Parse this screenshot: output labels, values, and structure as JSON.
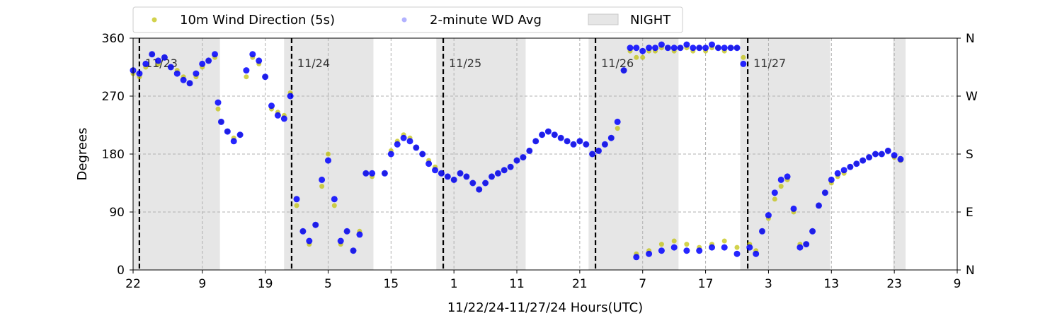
{
  "chart_data": {
    "type": "scatter",
    "title": "",
    "xlabel": "11/22/24-11/27/24  Hours(UTC)",
    "ylabel": "Degrees",
    "x_range_hours": [
      0,
      131
    ],
    "x_tick_hours": [
      0,
      11,
      21,
      31,
      41,
      51,
      61,
      71,
      81,
      91,
      101,
      111,
      121,
      131
    ],
    "x_tick_labels": [
      "22",
      "9",
      "19",
      "5",
      "15",
      "1",
      "11",
      "21",
      "7",
      "17",
      "3",
      "13",
      "23",
      "9"
    ],
    "ylim": [
      0,
      360
    ],
    "y_ticks": [
      0,
      90,
      180,
      270,
      360
    ],
    "y_tick_labels": [
      "0",
      "90",
      "180",
      "270",
      "360"
    ],
    "right_axis_ticks": [
      0,
      90,
      180,
      270,
      360
    ],
    "right_axis_labels": [
      "N",
      "E",
      "S",
      "W",
      "N"
    ],
    "grid": true,
    "legend": {
      "placement": "top-left-outside",
      "entries": [
        {
          "label": "10m Wind Direction (5s)",
          "color": "#bfbf00",
          "marker": "circle"
        },
        {
          "label": "2-minute WD Avg",
          "color": "#0000ff",
          "marker": "circle"
        },
        {
          "label": "NIGHT",
          "color": "#e6e6e6",
          "marker": "patch"
        }
      ]
    },
    "night_periods_hours": [
      [
        0,
        13.8
      ],
      [
        24,
        38.2
      ],
      [
        48.2,
        62.4
      ],
      [
        72.4,
        86.7
      ],
      [
        96.5,
        110.8
      ],
      [
        120.8,
        122.8
      ]
    ],
    "day_boundaries": [
      {
        "hour": 1,
        "label": "11/23"
      },
      {
        "hour": 25.2,
        "label": "11/24"
      },
      {
        "hour": 49.3,
        "label": "11/25"
      },
      {
        "hour": 73.5,
        "label": "11/26"
      },
      {
        "hour": 97.7,
        "label": "11/27"
      }
    ],
    "series": [
      {
        "name": "10m Wind Direction (5s)",
        "color": "#bfbf00",
        "points": [
          [
            0,
            305
          ],
          [
            1,
            300
          ],
          [
            2,
            315
          ],
          [
            3,
            335
          ],
          [
            4,
            320
          ],
          [
            5,
            330
          ],
          [
            6,
            315
          ],
          [
            7,
            310
          ],
          [
            8,
            300
          ],
          [
            9,
            290
          ],
          [
            10,
            300
          ],
          [
            11,
            315
          ],
          [
            12,
            325
          ],
          [
            13,
            330
          ],
          [
            13.5,
            250
          ],
          [
            14,
            230
          ],
          [
            15,
            215
          ],
          [
            16,
            205
          ],
          [
            17,
            210
          ],
          [
            18,
            300
          ],
          [
            19,
            330
          ],
          [
            20,
            320
          ],
          [
            21,
            300
          ],
          [
            22,
            250
          ],
          [
            23,
            245
          ],
          [
            24,
            240
          ],
          [
            25,
            275
          ],
          [
            26,
            100
          ],
          [
            27,
            60
          ],
          [
            28,
            40
          ],
          [
            29,
            70
          ],
          [
            30,
            130
          ],
          [
            31,
            180
          ],
          [
            32,
            100
          ],
          [
            33,
            40
          ],
          [
            34,
            60
          ],
          [
            35,
            30
          ],
          [
            36,
            60
          ],
          [
            37,
            150
          ],
          [
            38,
            145
          ],
          [
            40,
            150
          ],
          [
            41,
            185
          ],
          [
            42,
            200
          ],
          [
            43,
            210
          ],
          [
            44,
            205
          ],
          [
            45,
            190
          ],
          [
            46,
            180
          ],
          [
            47,
            170
          ],
          [
            48,
            160
          ],
          [
            49,
            150
          ],
          [
            50,
            145
          ],
          [
            51,
            140
          ],
          [
            52,
            150
          ],
          [
            53,
            145
          ],
          [
            54,
            135
          ],
          [
            55,
            125
          ],
          [
            56,
            135
          ],
          [
            57,
            145
          ],
          [
            58,
            150
          ],
          [
            59,
            155
          ],
          [
            60,
            160
          ],
          [
            61,
            170
          ],
          [
            62,
            175
          ],
          [
            63,
            185
          ],
          [
            64,
            200
          ],
          [
            65,
            210
          ],
          [
            66,
            215
          ],
          [
            67,
            210
          ],
          [
            68,
            205
          ],
          [
            69,
            200
          ],
          [
            70,
            195
          ],
          [
            71,
            200
          ],
          [
            72,
            195
          ],
          [
            73,
            180
          ],
          [
            74,
            185
          ],
          [
            75,
            195
          ],
          [
            76,
            205
          ],
          [
            77,
            220
          ],
          [
            78,
            310
          ],
          [
            79,
            340
          ],
          [
            80,
            330
          ],
          [
            81,
            330
          ],
          [
            82,
            340
          ],
          [
            83,
            340
          ],
          [
            84,
            345
          ],
          [
            85,
            345
          ],
          [
            86,
            340
          ],
          [
            87,
            345
          ],
          [
            88,
            345
          ],
          [
            89,
            340
          ],
          [
            90,
            345
          ],
          [
            91,
            340
          ],
          [
            92,
            345
          ],
          [
            93,
            345
          ],
          [
            94,
            340
          ],
          [
            95,
            345
          ],
          [
            96,
            345
          ],
          [
            80,
            25
          ],
          [
            82,
            30
          ],
          [
            84,
            40
          ],
          [
            86,
            45
          ],
          [
            88,
            40
          ],
          [
            90,
            35
          ],
          [
            92,
            40
          ],
          [
            94,
            45
          ],
          [
            96,
            35
          ],
          [
            97,
            330
          ],
          [
            98,
            40
          ],
          [
            99,
            30
          ],
          [
            100,
            60
          ],
          [
            101,
            80
          ],
          [
            102,
            110
          ],
          [
            103,
            130
          ],
          [
            104,
            140
          ],
          [
            105,
            90
          ],
          [
            106,
            40
          ],
          [
            107,
            40
          ],
          [
            108,
            60
          ],
          [
            109,
            100
          ],
          [
            110,
            120
          ],
          [
            111,
            135
          ],
          [
            112,
            145
          ],
          [
            113,
            150
          ],
          [
            114,
            160
          ],
          [
            115,
            165
          ],
          [
            116,
            170
          ],
          [
            117,
            175
          ],
          [
            118,
            180
          ],
          [
            119,
            180
          ],
          [
            120,
            185
          ],
          [
            121,
            175
          ],
          [
            122,
            170
          ]
        ]
      },
      {
        "name": "2-minute WD Avg",
        "color": "#0000ff",
        "points": [
          [
            0,
            310
          ],
          [
            1,
            305
          ],
          [
            2,
            320
          ],
          [
            3,
            335
          ],
          [
            4,
            325
          ],
          [
            5,
            330
          ],
          [
            6,
            315
          ],
          [
            7,
            305
          ],
          [
            8,
            295
          ],
          [
            9,
            290
          ],
          [
            10,
            305
          ],
          [
            11,
            320
          ],
          [
            12,
            325
          ],
          [
            13,
            335
          ],
          [
            13.5,
            260
          ],
          [
            14,
            230
          ],
          [
            15,
            215
          ],
          [
            16,
            200
          ],
          [
            17,
            210
          ],
          [
            18,
            310
          ],
          [
            19,
            335
          ],
          [
            20,
            325
          ],
          [
            21,
            300
          ],
          [
            22,
            255
          ],
          [
            23,
            240
          ],
          [
            24,
            235
          ],
          [
            25,
            270
          ],
          [
            26,
            110
          ],
          [
            27,
            60
          ],
          [
            28,
            45
          ],
          [
            29,
            70
          ],
          [
            30,
            140
          ],
          [
            31,
            170
          ],
          [
            32,
            110
          ],
          [
            33,
            45
          ],
          [
            34,
            60
          ],
          [
            35,
            30
          ],
          [
            36,
            55
          ],
          [
            37,
            150
          ],
          [
            38,
            150
          ],
          [
            40,
            150
          ],
          [
            41,
            180
          ],
          [
            42,
            195
          ],
          [
            43,
            205
          ],
          [
            44,
            200
          ],
          [
            45,
            190
          ],
          [
            46,
            180
          ],
          [
            47,
            165
          ],
          [
            48,
            155
          ],
          [
            49,
            150
          ],
          [
            50,
            145
          ],
          [
            51,
            140
          ],
          [
            52,
            150
          ],
          [
            53,
            145
          ],
          [
            54,
            135
          ],
          [
            55,
            125
          ],
          [
            56,
            135
          ],
          [
            57,
            145
          ],
          [
            58,
            150
          ],
          [
            59,
            155
          ],
          [
            60,
            160
          ],
          [
            61,
            170
          ],
          [
            62,
            175
          ],
          [
            63,
            185
          ],
          [
            64,
            200
          ],
          [
            65,
            210
          ],
          [
            66,
            215
          ],
          [
            67,
            210
          ],
          [
            68,
            205
          ],
          [
            69,
            200
          ],
          [
            70,
            195
          ],
          [
            71,
            200
          ],
          [
            72,
            195
          ],
          [
            73,
            180
          ],
          [
            74,
            185
          ],
          [
            75,
            195
          ],
          [
            76,
            205
          ],
          [
            77,
            230
          ],
          [
            78,
            310
          ],
          [
            79,
            345
          ],
          [
            80,
            345
          ],
          [
            81,
            340
          ],
          [
            82,
            345
          ],
          [
            83,
            345
          ],
          [
            84,
            350
          ],
          [
            85,
            345
          ],
          [
            86,
            345
          ],
          [
            87,
            345
          ],
          [
            88,
            350
          ],
          [
            89,
            345
          ],
          [
            90,
            345
          ],
          [
            91,
            345
          ],
          [
            92,
            350
          ],
          [
            93,
            345
          ],
          [
            94,
            345
          ],
          [
            95,
            345
          ],
          [
            96,
            345
          ],
          [
            80,
            20
          ],
          [
            82,
            25
          ],
          [
            84,
            30
          ],
          [
            86,
            35
          ],
          [
            88,
            30
          ],
          [
            90,
            30
          ],
          [
            92,
            35
          ],
          [
            94,
            35
          ],
          [
            96,
            25
          ],
          [
            97,
            320
          ],
          [
            98,
            35
          ],
          [
            99,
            25
          ],
          [
            100,
            60
          ],
          [
            101,
            85
          ],
          [
            102,
            120
          ],
          [
            103,
            140
          ],
          [
            104,
            145
          ],
          [
            105,
            95
          ],
          [
            106,
            35
          ],
          [
            107,
            40
          ],
          [
            108,
            60
          ],
          [
            109,
            100
          ],
          [
            110,
            120
          ],
          [
            111,
            140
          ],
          [
            112,
            150
          ],
          [
            113,
            155
          ],
          [
            114,
            160
          ],
          [
            115,
            165
          ],
          [
            116,
            170
          ],
          [
            117,
            175
          ],
          [
            118,
            180
          ],
          [
            119,
            180
          ],
          [
            120,
            185
          ],
          [
            121,
            178
          ],
          [
            122,
            172
          ]
        ]
      }
    ]
  }
}
